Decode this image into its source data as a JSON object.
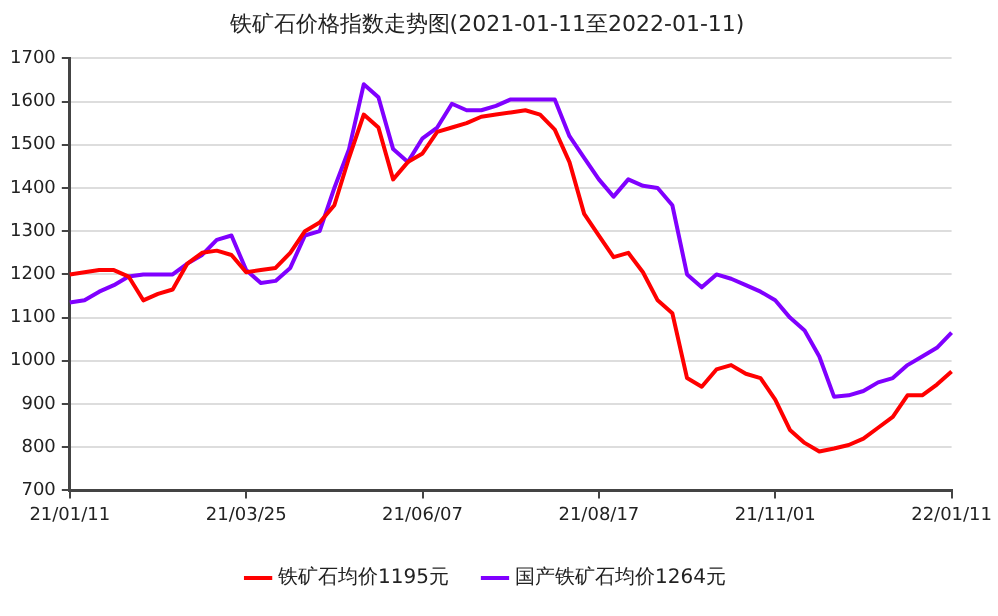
{
  "chart_data": {
    "type": "line",
    "title": "铁矿石价格指数走势图(2021-01-11至2022-01-11)",
    "categories": [
      "21/01/11",
      null,
      null,
      null,
      null,
      null,
      null,
      null,
      null,
      null,
      null,
      null,
      "21/03/25",
      null,
      null,
      null,
      null,
      null,
      null,
      null,
      null,
      null,
      null,
      null,
      "21/06/07",
      null,
      null,
      null,
      null,
      null,
      null,
      null,
      null,
      null,
      null,
      null,
      "21/08/17",
      null,
      null,
      null,
      null,
      null,
      null,
      null,
      null,
      null,
      null,
      null,
      "21/11/01",
      null,
      null,
      null,
      null,
      null,
      null,
      null,
      null,
      null,
      null,
      null,
      "22/01/11"
    ],
    "series": [
      {
        "name": "铁矿石均价1195元",
        "color": "#ff0000",
        "values": [
          1200,
          1205,
          1210,
          1210,
          1195,
          1140,
          1155,
          1165,
          1225,
          1250,
          1255,
          1245,
          1205,
          1210,
          1215,
          1250,
          1300,
          1320,
          1360,
          1470,
          1570,
          1540,
          1420,
          1460,
          1480,
          1530,
          1540,
          1550,
          1565,
          1570,
          1575,
          1580,
          1570,
          1535,
          1460,
          1340,
          1290,
          1240,
          1250,
          1205,
          1140,
          1110,
          960,
          940,
          980,
          990,
          970,
          960,
          910,
          840,
          810,
          790,
          797,
          805,
          820,
          845,
          870,
          920,
          920,
          945,
          975
        ]
      },
      {
        "name": "国产铁矿石均价1264元",
        "color": "#8000ff",
        "values": [
          1135,
          1140,
          1160,
          1175,
          1195,
          1200,
          1200,
          1200,
          1225,
          1245,
          1280,
          1290,
          1210,
          1180,
          1185,
          1215,
          1290,
          1300,
          1400,
          1490,
          1640,
          1610,
          1490,
          1460,
          1515,
          1540,
          1595,
          1580,
          1580,
          1590,
          1605,
          1605,
          1605,
          1605,
          1520,
          1470,
          1420,
          1380,
          1420,
          1405,
          1400,
          1360,
          1200,
          1170,
          1200,
          1190,
          1175,
          1160,
          1140,
          1100,
          1070,
          1010,
          917,
          920,
          930,
          950,
          960,
          990,
          1010,
          1030,
          1065
        ]
      }
    ],
    "ylim": [
      700,
      1700
    ],
    "yticks": [
      700,
      800,
      900,
      1000,
      1100,
      1200,
      1300,
      1400,
      1500,
      1600,
      1700
    ],
    "grid": "y",
    "legend": "bottom"
  }
}
